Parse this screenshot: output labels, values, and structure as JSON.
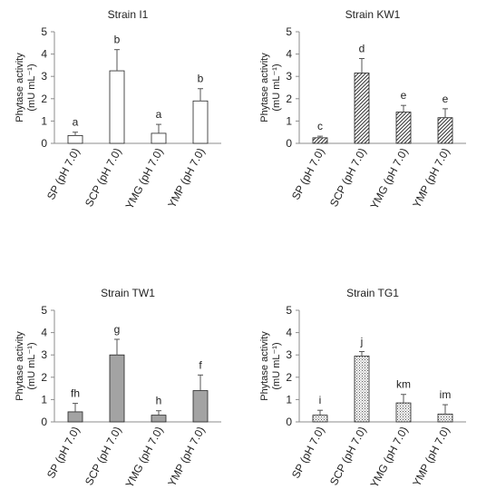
{
  "chart_data": [
    {
      "type": "bar",
      "title": "Strain I1",
      "ylabel": "Phytase activity",
      "yunit_line": "(mU mL⁻¹)",
      "ylim": [
        0,
        5
      ],
      "yticks": [
        "0",
        "1",
        "2",
        "3",
        "4",
        "5"
      ],
      "categories": [
        "SP (pH 7.0)",
        "SCP (pH 7.0)",
        "YMG (pH 7.0)",
        "YMP (pH 7.0)"
      ],
      "values": [
        0.35,
        3.25,
        0.45,
        1.9
      ],
      "errors": [
        0.15,
        0.95,
        0.4,
        0.55
      ],
      "letters": [
        "a",
        "b",
        "a",
        "b"
      ],
      "fill": "white"
    },
    {
      "type": "bar",
      "title": "Strain KW1",
      "ylabel": "Phytase activity",
      "yunit_line": "(mU mL⁻¹)",
      "ylim": [
        0,
        5
      ],
      "yticks": [
        "0",
        "1",
        "2",
        "3",
        "4",
        "5"
      ],
      "categories": [
        "SP (pH 7.0)",
        "SCP (pH 7.0)",
        "YMG (pH 7.0)",
        "YMP (pH 7.0)"
      ],
      "values": [
        0.25,
        3.15,
        1.4,
        1.15
      ],
      "errors": [
        0.07,
        0.65,
        0.3,
        0.4
      ],
      "letters": [
        "c",
        "d",
        "e",
        "e"
      ],
      "fill": "hatch"
    },
    {
      "type": "bar",
      "title": "Strain TW1",
      "ylabel": "Phytase activity",
      "yunit_line": "(mU mL⁻¹)",
      "ylim": [
        0,
        5
      ],
      "yticks": [
        "0",
        "1",
        "2",
        "3",
        "4",
        "5"
      ],
      "categories": [
        "SP (pH 7.0)",
        "SCP (pH 7.0)",
        "YMG (pH 7.0)",
        "YMP (pH 7.0)"
      ],
      "values": [
        0.45,
        3.0,
        0.3,
        1.4
      ],
      "errors": [
        0.38,
        0.7,
        0.2,
        0.7
      ],
      "letters": [
        "fh",
        "g",
        "h",
        "f"
      ],
      "fill": "gray"
    },
    {
      "type": "bar",
      "title": "Strain TG1",
      "ylabel": "Phytase activity",
      "yunit_line": "(mU mL⁻¹)",
      "ylim": [
        0,
        5
      ],
      "yticks": [
        "0",
        "1",
        "2",
        "3",
        "4",
        "5"
      ],
      "categories": [
        "SP (pH 7.0)",
        "SCP (pH 7.0)",
        "YMG (pH 7.0)",
        "YMP (pH 7.0)"
      ],
      "values": [
        0.3,
        2.95,
        0.85,
        0.35
      ],
      "errors": [
        0.22,
        0.2,
        0.38,
        0.42
      ],
      "letters": [
        "i",
        "j",
        "km",
        "im"
      ],
      "fill": "dots"
    }
  ]
}
